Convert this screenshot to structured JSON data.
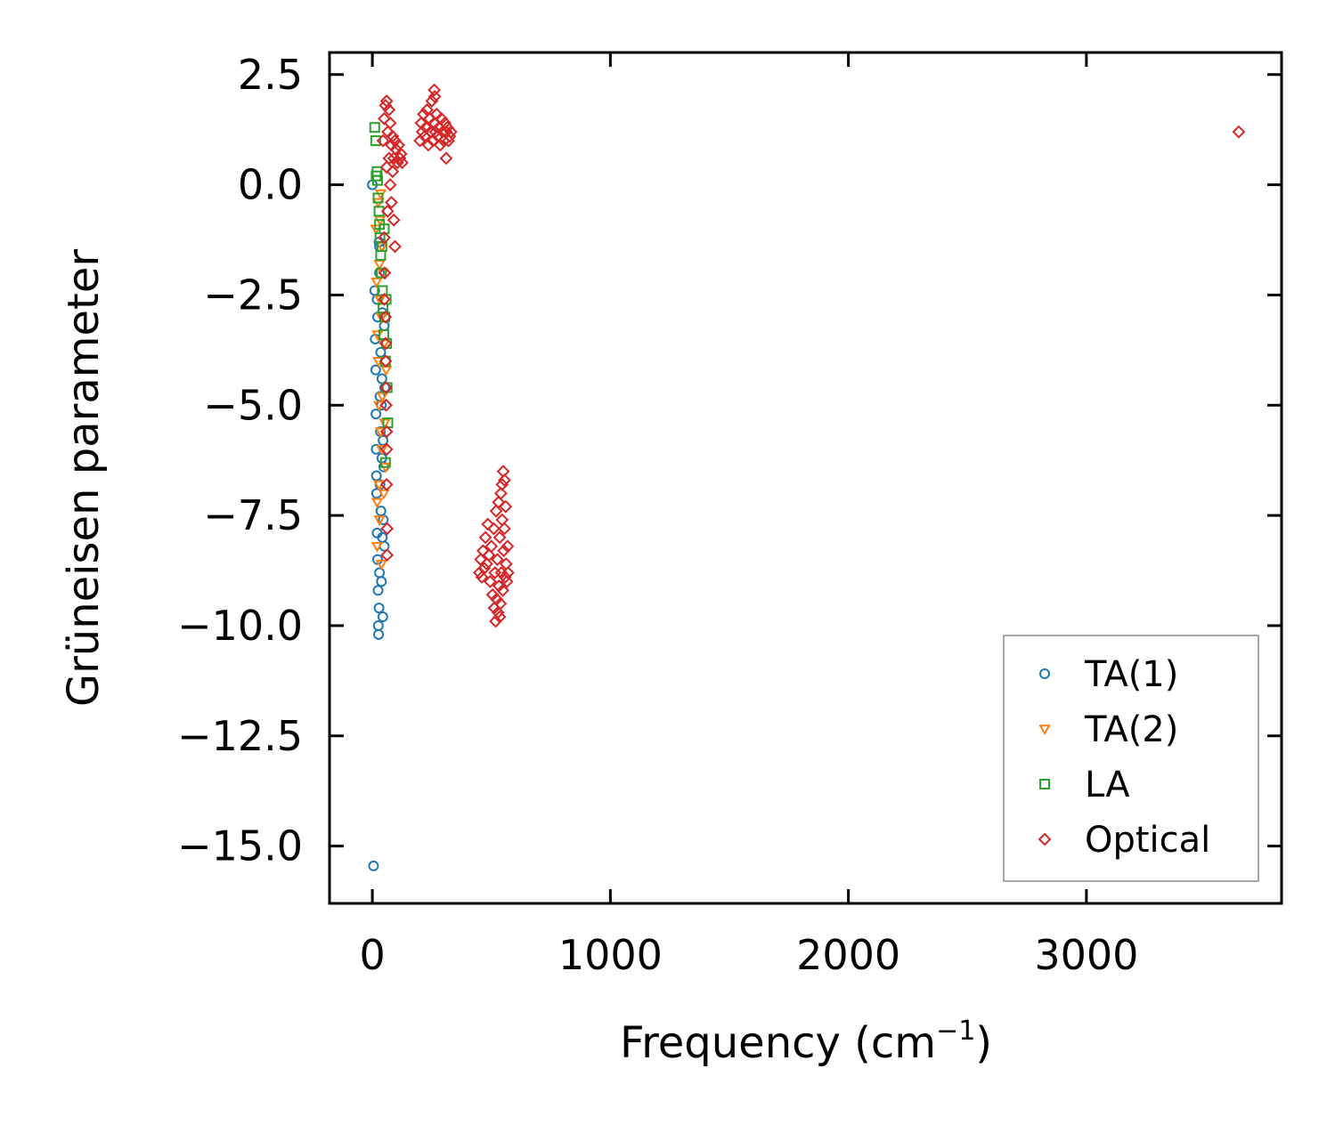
{
  "chart_data": {
    "type": "scatter",
    "xlabel": "Frequency (cm",
    "xlabel_sup": "−1",
    "xlabel_end": ")",
    "ylabel": "Grüneisen parameter",
    "xlim": [
      -180,
      3820
    ],
    "ylim": [
      -16.3,
      3.0
    ],
    "xticks": [
      0,
      1000,
      2000,
      3000
    ],
    "xtick_labels": [
      "0",
      "1000",
      "2000",
      "3000"
    ],
    "yticks": [
      2.5,
      0.0,
      -2.5,
      -5.0,
      -7.5,
      -10.0,
      -12.5,
      -15.0
    ],
    "ytick_labels": [
      "2.5",
      "0.0",
      "−2.5",
      "−5.0",
      "−7.5",
      "−10.0",
      "−12.5",
      "−15.0"
    ],
    "legend_position": "lower-right",
    "series": [
      {
        "name": "TA(1)",
        "marker": "circle",
        "color": "#1f77b4",
        "points": [
          [
            0,
            0.0
          ],
          [
            5,
            -15.45
          ],
          [
            10,
            -2.4
          ],
          [
            12,
            -3.5
          ],
          [
            14,
            -4.2
          ],
          [
            15,
            -5.2
          ],
          [
            16,
            -6.0
          ],
          [
            17,
            -6.6
          ],
          [
            18,
            -7.0
          ],
          [
            20,
            -7.9
          ],
          [
            20,
            -2.6
          ],
          [
            22,
            -3.0
          ],
          [
            22,
            -8.5
          ],
          [
            24,
            -9.2
          ],
          [
            25,
            -10.0
          ],
          [
            26,
            -10.2
          ],
          [
            28,
            -9.6
          ],
          [
            28,
            -1.3
          ],
          [
            30,
            -1.4
          ],
          [
            30,
            -2.0
          ],
          [
            30,
            -8.8
          ],
          [
            32,
            -4.8
          ],
          [
            32,
            -6.8
          ],
          [
            34,
            -5.6
          ],
          [
            35,
            -3.8
          ],
          [
            36,
            -7.4
          ],
          [
            38,
            -9.0
          ],
          [
            38,
            -5.0
          ],
          [
            40,
            -6.2
          ],
          [
            40,
            -4.4
          ],
          [
            42,
            -8.0
          ],
          [
            42,
            -2.9
          ],
          [
            44,
            -9.8
          ],
          [
            45,
            -5.8
          ],
          [
            46,
            -7.6
          ],
          [
            48,
            -6.4
          ],
          [
            50,
            -3.2
          ],
          [
            50,
            -8.2
          ],
          [
            52,
            -4.6
          ]
        ]
      },
      {
        "name": "TA(2)",
        "marker": "triangle-down",
        "color": "#ff7f0e",
        "points": [
          [
            15,
            -1.0
          ],
          [
            18,
            -2.2
          ],
          [
            20,
            -7.2
          ],
          [
            20,
            -8.2
          ],
          [
            22,
            -3.4
          ],
          [
            25,
            -0.4
          ],
          [
            25,
            -4.0
          ],
          [
            28,
            -5.0
          ],
          [
            28,
            -6.8
          ],
          [
            30,
            -1.8
          ],
          [
            30,
            -7.6
          ],
          [
            32,
            -0.8
          ],
          [
            32,
            -2.6
          ],
          [
            35,
            -0.2
          ],
          [
            35,
            -5.6
          ],
          [
            38,
            -3.0
          ],
          [
            38,
            -8.6
          ],
          [
            40,
            -1.4
          ],
          [
            40,
            -6.0
          ],
          [
            42,
            -4.8
          ],
          [
            45,
            -2.0
          ],
          [
            48,
            -7.0
          ],
          [
            50,
            -3.6
          ],
          [
            52,
            -5.4
          ],
          [
            55,
            -6.4
          ],
          [
            58,
            -4.2
          ]
        ]
      },
      {
        "name": "LA",
        "marker": "square",
        "color": "#2ca02c",
        "points": [
          [
            10,
            1.3
          ],
          [
            14,
            1.0
          ],
          [
            16,
            0.2
          ],
          [
            20,
            0.3
          ],
          [
            22,
            0.1
          ],
          [
            24,
            -0.3
          ],
          [
            28,
            -0.6
          ],
          [
            30,
            -0.9
          ],
          [
            32,
            -1.2
          ],
          [
            35,
            -1.6
          ],
          [
            38,
            -2.0
          ],
          [
            40,
            -1.4
          ],
          [
            42,
            -2.4
          ],
          [
            45,
            -2.8
          ],
          [
            48,
            -3.4
          ],
          [
            50,
            -1.0
          ],
          [
            52,
            -3.0
          ],
          [
            55,
            -4.0
          ],
          [
            58,
            -2.6
          ],
          [
            60,
            -3.6
          ],
          [
            62,
            -4.6
          ],
          [
            65,
            -5.4
          ],
          [
            55,
            -6.3
          ]
        ]
      },
      {
        "name": "Optical",
        "marker": "diamond",
        "color": "#d62728",
        "points": [
          [
            3640,
            1.2
          ],
          [
            310,
            0.6
          ],
          [
            95,
            -1.4
          ],
          [
            260,
            2.15
          ],
          [
            45,
            1.0
          ],
          [
            50,
            1.5
          ],
          [
            55,
            1.8
          ],
          [
            60,
            1.9
          ],
          [
            60,
            0.4
          ],
          [
            65,
            1.2
          ],
          [
            70,
            0.6
          ],
          [
            70,
            1.7
          ],
          [
            75,
            0.0
          ],
          [
            75,
            1.4
          ],
          [
            80,
            -0.4
          ],
          [
            80,
            0.9
          ],
          [
            85,
            0.3
          ],
          [
            85,
            1.1
          ],
          [
            90,
            -0.8
          ],
          [
            90,
            0.6
          ],
          [
            95,
            1.0
          ],
          [
            100,
            0.8
          ],
          [
            105,
            0.5
          ],
          [
            110,
            0.9
          ],
          [
            115,
            0.6
          ],
          [
            120,
            0.7
          ],
          [
            125,
            0.5
          ],
          [
            50,
            -1.2
          ],
          [
            52,
            -2.0
          ],
          [
            55,
            -3.0
          ],
          [
            56,
            -4.0
          ],
          [
            58,
            -5.0
          ],
          [
            60,
            -6.0
          ],
          [
            60,
            -6.8
          ],
          [
            62,
            -7.8
          ],
          [
            62,
            -8.4
          ],
          [
            50,
            -2.6
          ],
          [
            56,
            -3.6
          ],
          [
            58,
            -4.6
          ],
          [
            60,
            -5.6
          ],
          [
            64,
            -0.6
          ],
          [
            200,
            1.0
          ],
          [
            205,
            1.4
          ],
          [
            210,
            1.2
          ],
          [
            215,
            1.6
          ],
          [
            220,
            1.1
          ],
          [
            225,
            1.3
          ],
          [
            230,
            1.7
          ],
          [
            235,
            0.9
          ],
          [
            240,
            1.5
          ],
          [
            245,
            1.2
          ],
          [
            250,
            1.9
          ],
          [
            255,
            1.0
          ],
          [
            260,
            1.4
          ],
          [
            262,
            2.0
          ],
          [
            265,
            1.2
          ],
          [
            270,
            1.6
          ],
          [
            275,
            1.1
          ],
          [
            280,
            1.3
          ],
          [
            285,
            0.9
          ],
          [
            290,
            1.5
          ],
          [
            295,
            1.2
          ],
          [
            300,
            1.0
          ],
          [
            305,
            1.4
          ],
          [
            310,
            1.2
          ],
          [
            315,
            1.3
          ],
          [
            320,
            1.0
          ],
          [
            325,
            1.1
          ],
          [
            330,
            1.2
          ],
          [
            450,
            -8.8
          ],
          [
            455,
            -8.5
          ],
          [
            460,
            -8.9
          ],
          [
            465,
            -8.3
          ],
          [
            470,
            -8.7
          ],
          [
            475,
            -8.0
          ],
          [
            480,
            -8.6
          ],
          [
            485,
            -7.7
          ],
          [
            490,
            -8.4
          ],
          [
            495,
            -9.0
          ],
          [
            500,
            -8.2
          ],
          [
            505,
            -9.3
          ],
          [
            510,
            -7.8
          ],
          [
            512,
            -9.6
          ],
          [
            515,
            -8.8
          ],
          [
            518,
            -9.9
          ],
          [
            520,
            -7.4
          ],
          [
            522,
            -9.4
          ],
          [
            525,
            -8.5
          ],
          [
            528,
            -9.7
          ],
          [
            530,
            -7.2
          ],
          [
            532,
            -9.1
          ],
          [
            535,
            -8.0
          ],
          [
            538,
            -9.5
          ],
          [
            540,
            -7.0
          ],
          [
            542,
            -8.8
          ],
          [
            545,
            -6.8
          ],
          [
            548,
            -9.2
          ],
          [
            550,
            -6.5
          ],
          [
            552,
            -8.3
          ],
          [
            555,
            -6.7
          ],
          [
            558,
            -8.9
          ],
          [
            560,
            -7.3
          ],
          [
            562,
            -8.6
          ],
          [
            565,
            -9.0
          ],
          [
            568,
            -8.2
          ],
          [
            570,
            -8.8
          ],
          [
            555,
            -7.8
          ],
          [
            545,
            -7.6
          ],
          [
            535,
            -9.8
          ]
        ]
      }
    ]
  }
}
